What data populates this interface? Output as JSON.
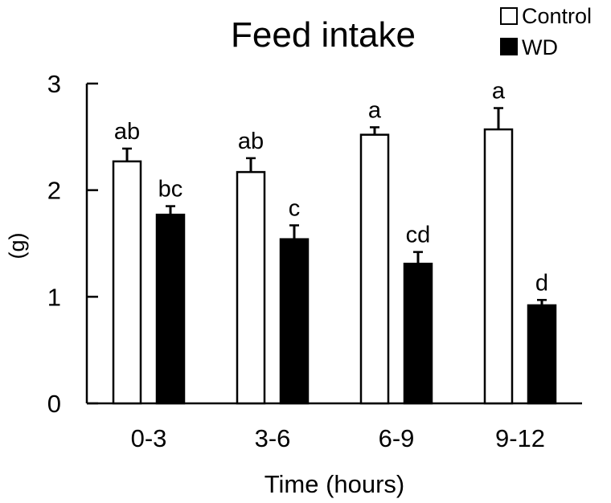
{
  "chart_data": {
    "type": "bar",
    "title": "Feed intake",
    "xlabel": "Time (hours)",
    "ylabel": "(g)",
    "categories": [
      "0-3",
      "3-6",
      "6-9",
      "9-12"
    ],
    "ylim": [
      0,
      3
    ],
    "yticks": [
      0,
      1,
      2,
      3
    ],
    "grid": false,
    "legend_position": "top-right",
    "series": [
      {
        "name": "Control",
        "fill": "#ffffff",
        "values": [
          2.27,
          2.17,
          2.52,
          2.57
        ],
        "errors": [
          0.12,
          0.13,
          0.07,
          0.2
        ],
        "labels": [
          "ab",
          "ab",
          "a",
          "a"
        ]
      },
      {
        "name": "WD",
        "fill": "#000000",
        "values": [
          1.77,
          1.54,
          1.31,
          0.92
        ],
        "errors": [
          0.08,
          0.13,
          0.11,
          0.05
        ],
        "labels": [
          "bc",
          "c",
          "cd",
          "d"
        ]
      }
    ]
  }
}
